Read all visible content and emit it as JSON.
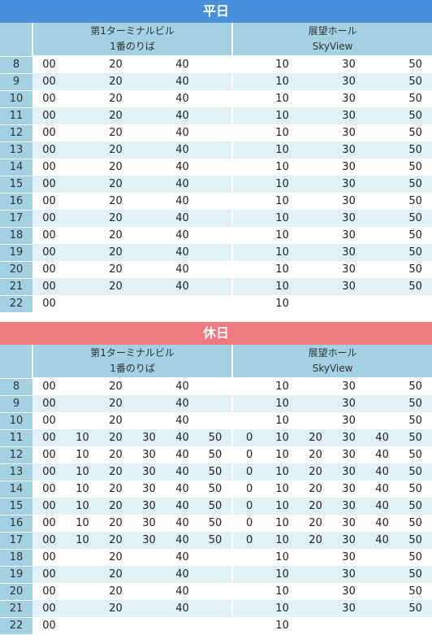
{
  "sections": [
    {
      "id": "weekday",
      "title": "平日",
      "headers": [
        {
          "line1": "第1ターミナルビル",
          "line2": "1番のりば"
        },
        {
          "line1": "展望ホール",
          "line2": "SkyView"
        }
      ],
      "rows": [
        {
          "hour": "8",
          "a": [
            "00",
            "",
            "20",
            "",
            "40",
            ""
          ],
          "b": [
            "",
            "10",
            "",
            "30",
            "",
            "50"
          ]
        },
        {
          "hour": "9",
          "a": [
            "00",
            "",
            "20",
            "",
            "40",
            ""
          ],
          "b": [
            "",
            "10",
            "",
            "30",
            "",
            "50"
          ]
        },
        {
          "hour": "10",
          "a": [
            "00",
            "",
            "20",
            "",
            "40",
            ""
          ],
          "b": [
            "",
            "10",
            "",
            "30",
            "",
            "50"
          ]
        },
        {
          "hour": "11",
          "a": [
            "00",
            "",
            "20",
            "",
            "40",
            ""
          ],
          "b": [
            "",
            "10",
            "",
            "30",
            "",
            "50"
          ]
        },
        {
          "hour": "12",
          "a": [
            "00",
            "",
            "20",
            "",
            "40",
            ""
          ],
          "b": [
            "",
            "10",
            "",
            "30",
            "",
            "50"
          ]
        },
        {
          "hour": "13",
          "a": [
            "00",
            "",
            "20",
            "",
            "40",
            ""
          ],
          "b": [
            "",
            "10",
            "",
            "30",
            "",
            "50"
          ]
        },
        {
          "hour": "14",
          "a": [
            "00",
            "",
            "20",
            "",
            "40",
            ""
          ],
          "b": [
            "",
            "10",
            "",
            "30",
            "",
            "50"
          ]
        },
        {
          "hour": "15",
          "a": [
            "00",
            "",
            "20",
            "",
            "40",
            ""
          ],
          "b": [
            "",
            "10",
            "",
            "30",
            "",
            "50"
          ]
        },
        {
          "hour": "16",
          "a": [
            "00",
            "",
            "20",
            "",
            "40",
            ""
          ],
          "b": [
            "",
            "10",
            "",
            "30",
            "",
            "50"
          ]
        },
        {
          "hour": "17",
          "a": [
            "00",
            "",
            "20",
            "",
            "40",
            ""
          ],
          "b": [
            "",
            "10",
            "",
            "30",
            "",
            "50"
          ]
        },
        {
          "hour": "18",
          "a": [
            "00",
            "",
            "20",
            "",
            "40",
            ""
          ],
          "b": [
            "",
            "10",
            "",
            "30",
            "",
            "50"
          ]
        },
        {
          "hour": "19",
          "a": [
            "00",
            "",
            "20",
            "",
            "40",
            ""
          ],
          "b": [
            "",
            "10",
            "",
            "30",
            "",
            "50"
          ]
        },
        {
          "hour": "20",
          "a": [
            "00",
            "",
            "20",
            "",
            "40",
            ""
          ],
          "b": [
            "",
            "10",
            "",
            "30",
            "",
            "50"
          ]
        },
        {
          "hour": "21",
          "a": [
            "00",
            "",
            "20",
            "",
            "40",
            ""
          ],
          "b": [
            "",
            "10",
            "",
            "30",
            "",
            "50"
          ]
        },
        {
          "hour": "22",
          "a": [
            "00",
            "",
            "",
            "",
            "",
            ""
          ],
          "b": [
            "",
            "10",
            "",
            "",
            "",
            ""
          ]
        }
      ]
    },
    {
      "id": "holiday",
      "title": "休日",
      "headers": [
        {
          "line1": "第1ターミナルビル",
          "line2": "1番のりば"
        },
        {
          "line1": "展望ホール",
          "line2": "SkyView"
        }
      ],
      "rows": [
        {
          "hour": "8",
          "a": [
            "00",
            "",
            "20",
            "",
            "40",
            ""
          ],
          "b": [
            "",
            "10",
            "",
            "30",
            "",
            "50"
          ]
        },
        {
          "hour": "9",
          "a": [
            "00",
            "",
            "20",
            "",
            "40",
            ""
          ],
          "b": [
            "",
            "10",
            "",
            "30",
            "",
            "50"
          ]
        },
        {
          "hour": "10",
          "a": [
            "00",
            "",
            "20",
            "",
            "40",
            ""
          ],
          "b": [
            "",
            "10",
            "",
            "30",
            "",
            "50"
          ]
        },
        {
          "hour": "11",
          "a": [
            "00",
            "10",
            "20",
            "30",
            "40",
            "50"
          ],
          "b": [
            "0",
            "10",
            "20",
            "30",
            "40",
            "50"
          ]
        },
        {
          "hour": "12",
          "a": [
            "00",
            "10",
            "20",
            "30",
            "40",
            "50"
          ],
          "b": [
            "0",
            "10",
            "20",
            "30",
            "40",
            "50"
          ]
        },
        {
          "hour": "13",
          "a": [
            "00",
            "10",
            "20",
            "30",
            "40",
            "50"
          ],
          "b": [
            "0",
            "10",
            "20",
            "30",
            "40",
            "50"
          ]
        },
        {
          "hour": "14",
          "a": [
            "00",
            "10",
            "20",
            "30",
            "40",
            "50"
          ],
          "b": [
            "0",
            "10",
            "20",
            "30",
            "40",
            "50"
          ]
        },
        {
          "hour": "15",
          "a": [
            "00",
            "10",
            "20",
            "30",
            "40",
            "50"
          ],
          "b": [
            "0",
            "10",
            "20",
            "30",
            "40",
            "50"
          ]
        },
        {
          "hour": "16",
          "a": [
            "00",
            "10",
            "20",
            "30",
            "40",
            "50"
          ],
          "b": [
            "0",
            "10",
            "20",
            "30",
            "40",
            "50"
          ]
        },
        {
          "hour": "17",
          "a": [
            "00",
            "10",
            "20",
            "30",
            "40",
            "50"
          ],
          "b": [
            "0",
            "10",
            "20",
            "30",
            "40",
            "50"
          ]
        },
        {
          "hour": "18",
          "a": [
            "00",
            "",
            "20",
            "",
            "40",
            ""
          ],
          "b": [
            "",
            "10",
            "",
            "30",
            "",
            "50"
          ]
        },
        {
          "hour": "19",
          "a": [
            "00",
            "",
            "20",
            "",
            "40",
            ""
          ],
          "b": [
            "",
            "10",
            "",
            "30",
            "",
            "50"
          ]
        },
        {
          "hour": "20",
          "a": [
            "00",
            "",
            "20",
            "",
            "40",
            ""
          ],
          "b": [
            "",
            "10",
            "",
            "30",
            "",
            "50"
          ]
        },
        {
          "hour": "21",
          "a": [
            "00",
            "",
            "20",
            "",
            "40",
            ""
          ],
          "b": [
            "",
            "10",
            "",
            "30",
            "",
            "50"
          ]
        },
        {
          "hour": "22",
          "a": [
            "00",
            "",
            "",
            "",
            "",
            ""
          ],
          "b": [
            "",
            "10",
            "",
            "",
            "",
            ""
          ]
        }
      ]
    }
  ]
}
